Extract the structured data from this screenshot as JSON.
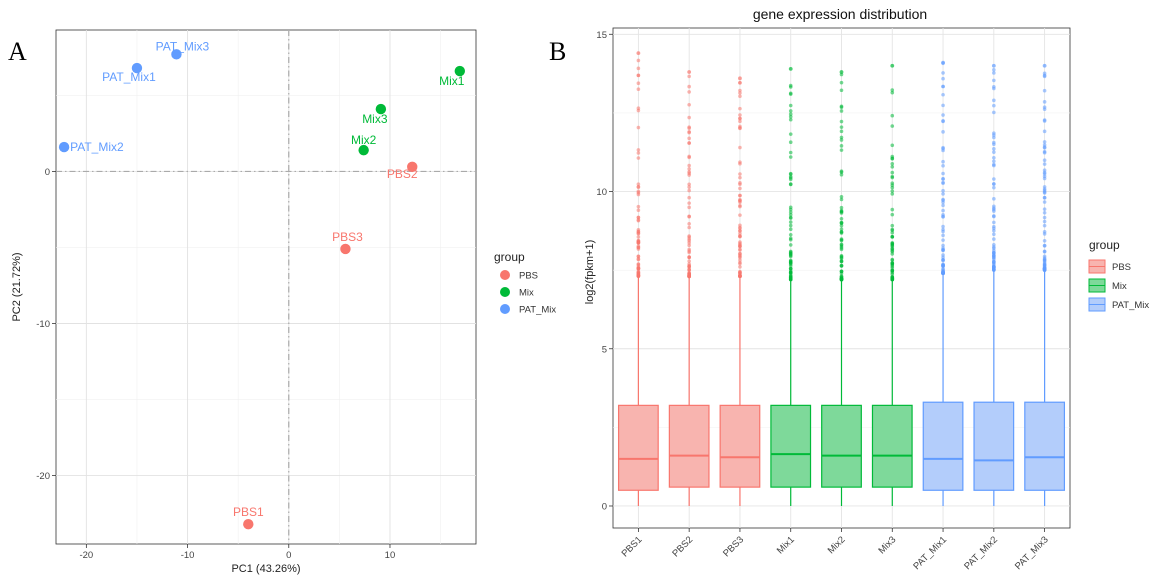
{
  "panels": {
    "a": "A",
    "b": "B"
  },
  "chart_data": [
    {
      "type": "scatter",
      "title": "",
      "xlabel": "PC1 (43.26%)",
      "ylabel": "PC2 (21.72%)",
      "xlim": [
        -23,
        18.5
      ],
      "ylim": [
        -24.5,
        9.3
      ],
      "xticks": [
        -20,
        -10,
        0,
        10
      ],
      "yticks": [
        -20,
        -10,
        0
      ],
      "grid": true,
      "reference_lines": {
        "x": 0,
        "y": 0
      },
      "legend": {
        "title": "group",
        "position": "right"
      },
      "series": [
        {
          "name": "PBS",
          "color": "#F8766D",
          "points": [
            {
              "label": "PBS1",
              "x": -4.0,
              "y": -23.2
            },
            {
              "label": "PBS2",
              "x": 12.2,
              "y": 0.3
            },
            {
              "label": "PBS3",
              "x": 5.6,
              "y": -5.1
            }
          ]
        },
        {
          "name": "Mix",
          "color": "#00BA38",
          "points": [
            {
              "label": "Mix1",
              "x": 16.9,
              "y": 6.6
            },
            {
              "label": "Mix2",
              "x": 7.4,
              "y": 1.4
            },
            {
              "label": "Mix3",
              "x": 9.1,
              "y": 4.1
            }
          ]
        },
        {
          "name": "PAT_Mix",
          "color": "#619CFF",
          "points": [
            {
              "label": "PAT_Mix1",
              "x": -15.0,
              "y": 6.8
            },
            {
              "label": "PAT_Mix2",
              "x": -22.2,
              "y": 1.6
            },
            {
              "label": "PAT_Mix3",
              "x": -11.1,
              "y": 7.7
            }
          ]
        }
      ]
    },
    {
      "type": "box",
      "title": "gene expression distribution",
      "xlabel": "",
      "ylabel": "log2(fpkm+1)",
      "ylim": [
        -0.7,
        15.2
      ],
      "yticks": [
        0,
        5,
        10,
        15
      ],
      "grid": true,
      "legend": {
        "title": "group",
        "position": "right"
      },
      "groups": [
        {
          "name": "PBS",
          "color": "#F8766D",
          "fill": "#F8B4AF"
        },
        {
          "name": "Mix",
          "color": "#00BA38",
          "fill": "#7ED99A"
        },
        {
          "name": "PAT_Mix",
          "color": "#619CFF",
          "fill": "#B3CDFB"
        }
      ],
      "boxes": [
        {
          "label": "PBS1",
          "group": "PBS",
          "min": 0.0,
          "q1": 0.5,
          "median": 1.5,
          "q3": 3.2,
          "whisker_high": 7.3,
          "max": 14.4
        },
        {
          "label": "PBS2",
          "group": "PBS",
          "min": 0.0,
          "q1": 0.6,
          "median": 1.6,
          "q3": 3.2,
          "whisker_high": 7.3,
          "max": 13.8
        },
        {
          "label": "PBS3",
          "group": "PBS",
          "min": 0.0,
          "q1": 0.6,
          "median": 1.55,
          "q3": 3.2,
          "whisker_high": 7.3,
          "max": 13.6
        },
        {
          "label": "Mix1",
          "group": "Mix",
          "min": 0.0,
          "q1": 0.6,
          "median": 1.65,
          "q3": 3.2,
          "whisker_high": 7.2,
          "max": 13.9
        },
        {
          "label": "Mix2",
          "group": "Mix",
          "min": 0.0,
          "q1": 0.6,
          "median": 1.6,
          "q3": 3.2,
          "whisker_high": 7.2,
          "max": 13.8
        },
        {
          "label": "Mix3",
          "group": "Mix",
          "min": 0.0,
          "q1": 0.6,
          "median": 1.6,
          "q3": 3.2,
          "whisker_high": 7.2,
          "max": 14.0
        },
        {
          "label": "PAT_Mix1",
          "group": "PAT_Mix",
          "min": 0.0,
          "q1": 0.5,
          "median": 1.5,
          "q3": 3.3,
          "whisker_high": 7.4,
          "max": 14.1
        },
        {
          "label": "PAT_Mix2",
          "group": "PAT_Mix",
          "min": 0.0,
          "q1": 0.5,
          "median": 1.45,
          "q3": 3.3,
          "whisker_high": 7.5,
          "max": 14.0
        },
        {
          "label": "PAT_Mix3",
          "group": "PAT_Mix",
          "min": 0.0,
          "q1": 0.5,
          "median": 1.55,
          "q3": 3.3,
          "whisker_high": 7.5,
          "max": 14.0
        }
      ]
    }
  ]
}
